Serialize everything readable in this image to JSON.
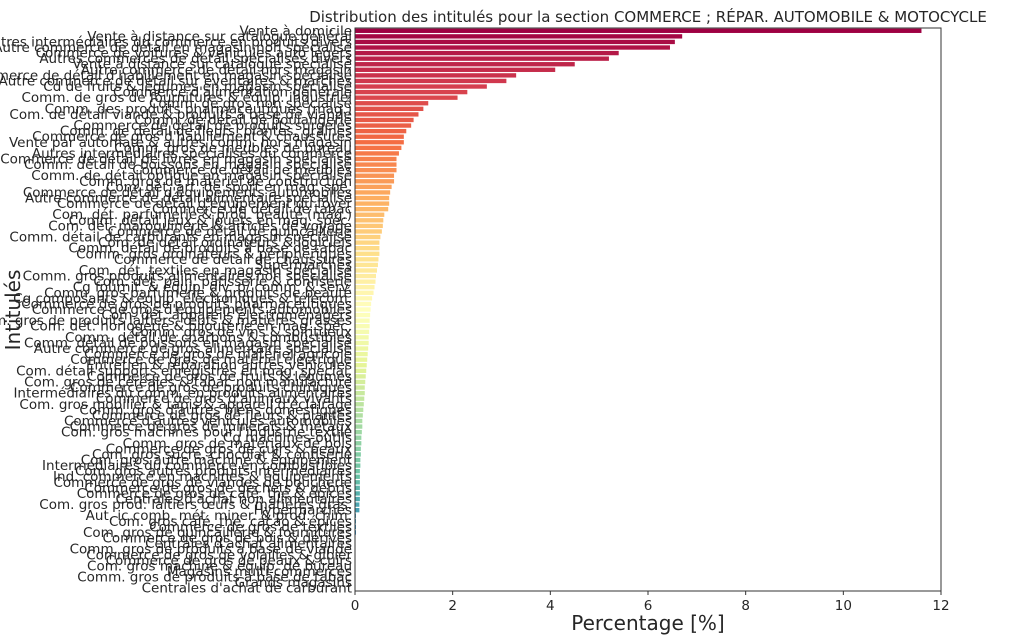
{
  "chart_data": {
    "type": "bar",
    "orientation": "horizontal",
    "title": "Distribution des intitulés pour la section COMMERCE ; RÉPAR. AUTOMOBILE & MOTOCYCLE",
    "xlabel": "Percentage [%]",
    "ylabel": "Intitulés",
    "xlim": [
      0,
      12
    ],
    "xticks": [
      "0",
      "2",
      "4",
      "6",
      "8",
      "10",
      "12"
    ],
    "grid": false,
    "palette": "Spectral",
    "categories": [
      "Vente à domicile",
      "Vente à distance sur catalogue général",
      "Autres intermédiaires du commerce en produits divers",
      "Autre commerce de détail en magasin non spécialisé",
      "Commerce de voitures & véhicules auto légers",
      "Autres commerces de détail spécialisés divers",
      "Vente à distance sur catalogue spécialisé",
      "Autre commerce de détail hors magasin",
      "Commerce de détail d'habillement en magasin spécialisé",
      "Autre commerce de détail sur éventaires & marchés",
      "Cd de fruits & légumes en magasin spécialisé",
      "Commerce d'alimentation générale",
      "Comm. de gros de fournitures & équip. industriel",
      "Comm. de gros non spécialisé",
      "Comm. des produits pharmaceutiques (mag.)",
      "Com. de détail viande & produits à base de viande",
      "Comm. de détail de boulangerie",
      "Commerce de détail de produits surgelés",
      "Comm. de détail de fleurs, plantes, graines",
      "Commerce de gros d'habillement & chaussures",
      "Vente par automate & autres comm. hors magasin",
      "Comm. gros de meubles de bureau",
      "Autres intermédiaires spécialisés du commerce",
      "Commerce de détail de livres en magasin spécialisé",
      "Comm. détail de boissons en magasin spécialisé",
      "Commerce de détail de meubles",
      "Comm. de détail optique en magasin spécialisé",
      "Comm. gros de matériel de construction",
      "Com. dét. art. de sport en mag. spé.",
      "Commerce de détail d'équipements automobiles",
      "Autre commerce de détail alimentaire spécialisé",
      "Commerce de détail d'équipement du foyer",
      "Commerce de détail de tabac",
      "Com. dét. parfumerie & prod. beauté (mag.)",
      "Comm. détail jeux & jouets en mag. spéc.",
      "Com. dét. maroquinerie & articles de voyage",
      "Commerce de détail de quincaillerie",
      "Comm. détail de carburants en magasin spécialisé",
      "Com. de détail ordinateurs & logiciels",
      "Comm. détail de produits à base de tabac",
      "Comm. gros ordinateurs & périphériques",
      "Commerce de détail de chaussures",
      "Supermarchés",
      "Com. dét. textiles en magasin spécialisé",
      "Comm. gros produits alimentaires non spécialisé",
      "Com. dét. pain, pâtisserie & confiserie",
      "Cg fournit. & équip. div. p/ comm. & serv.",
      "Comm. gros parfumerie & produits de beauté",
      "Cg composants & équip. électroniques & télécom.",
      "Commerce de gros de produits pharmaceutiques",
      "Commerce de gros d'équipements automobiles",
      "Com. dét. appareils électroménagers",
      "Comm. gros de produits laitiers, œufs & matières grasses",
      "Com. dét. horlogerie & bijouterie en mag. spéc.",
      "Comm. gros de vins & spiritueux",
      "Comm. détail de charbons & combustibles",
      "Comm. détail de poissons en magasin spécialisé",
      "Autre commerce de gros alimentaire spécialisé",
      "Commerce de gros de matériel agricole",
      "Commerce de gros de matériel électrique",
      "Entretien & réparation autres véhicules",
      "Com. détail supports enregistrés en mag. spécial.",
      "Commerce de gros de fruits & légumes",
      "Com. gros de céréales & tabac non manufacturé",
      "Commerce de gros de produits chimiques",
      "Intermédiaires du comm. en produits alimentaires",
      "Commerce de gros d'animaux vivants",
      "Com. gros mobilier & tapis & appareil d'éclairage",
      "Comm. gros d'autres biens domestiques",
      "Commerce de gros de fleurs & plantes",
      "Commerce d'autres véhicules automobiles",
      "Commerce de gros de minerais & métaux",
      "Com. gros machines pour l'industrie textile",
      "Cg machines-outils",
      "Comm. gros de matériaux de bois",
      "Commerce de gros de cuirs & peaux",
      "Com. gros sucre, chocolat & confiserie",
      "Com. gros autre machine & équipement",
      "Intermédiaires du commerce en combustibles",
      "Com. gros autres produits intermédiaires",
      "Ind. commerce en machines & équipements",
      "Commerce de gros de viandes de boucherie",
      "Commerce de gros de déchets & débris",
      "Commerce de gros de café, thé & épices",
      "Centrales d'achat non alimentaires",
      "Com. gros prod. laitiers œufs & matières gras.",
      "Hypermarchés",
      "Aut. ic comb. mét. miner. & prod. chim.",
      "Com. gros café, thé, cacao & épices",
      "Commerce de gros de textiles",
      "Com. gros de quincaillerie & fournitures",
      "Commerce de gros de bois & dérivés",
      "Centrales d'achat alimentaires",
      "Comm. gros de produits à base de viande",
      "Commerce de gros de volailles & gibier",
      "Commerce de gros de peaux & cuirs",
      "Com. gros machine & équip. de bureau",
      "Magasins multi-commerces",
      "Comm. gros de produits à base de tabac",
      "Grands magasins",
      "Centrales d'achat de carburant"
    ],
    "values": [
      11.6,
      6.7,
      6.55,
      6.45,
      5.4,
      5.2,
      4.5,
      4.1,
      3.3,
      3.1,
      2.7,
      2.3,
      2.1,
      1.5,
      1.4,
      1.3,
      1.2,
      1.15,
      1.05,
      1.0,
      1.0,
      0.95,
      0.9,
      0.85,
      0.85,
      0.85,
      0.8,
      0.8,
      0.75,
      0.72,
      0.7,
      0.7,
      0.68,
      0.6,
      0.58,
      0.57,
      0.55,
      0.52,
      0.5,
      0.5,
      0.5,
      0.48,
      0.47,
      0.45,
      0.43,
      0.42,
      0.4,
      0.38,
      0.35,
      0.33,
      0.32,
      0.31,
      0.3,
      0.3,
      0.29,
      0.28,
      0.28,
      0.27,
      0.26,
      0.25,
      0.24,
      0.23,
      0.22,
      0.21,
      0.2,
      0.2,
      0.19,
      0.18,
      0.17,
      0.16,
      0.15,
      0.15,
      0.14,
      0.13,
      0.13,
      0.12,
      0.12,
      0.11,
      0.11,
      0.1,
      0.1,
      0.1,
      0.1,
      0.1,
      0.1,
      0.09,
      0.09,
      0.02,
      0.02,
      0.02,
      0.02,
      0.01,
      0.01,
      0.01,
      0.01,
      0.01,
      0.01,
      0.01,
      0.01,
      0.01,
      0.01
    ]
  }
}
